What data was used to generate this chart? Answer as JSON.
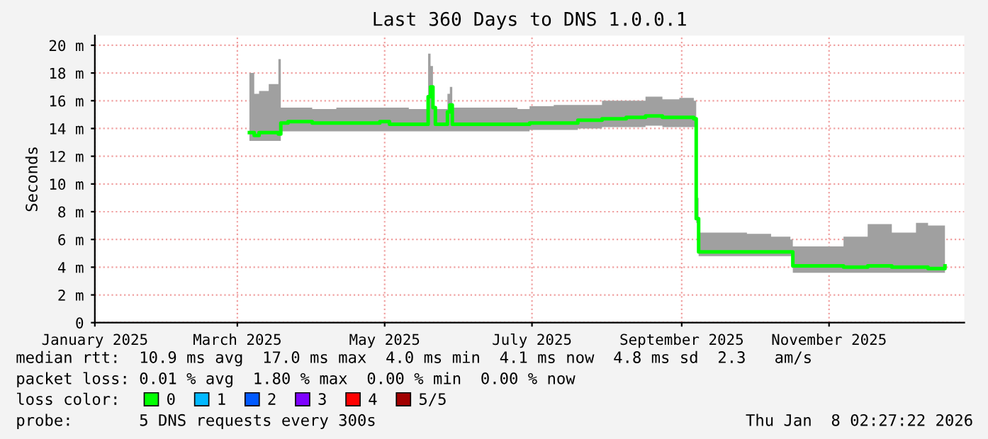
{
  "chart_data": {
    "type": "step",
    "title": "Last 360 Days to DNS 1.0.0.1",
    "ylabel": "Seconds",
    "x": [
      "2025-03-06",
      "2025-03-08",
      "2025-03-10",
      "2025-03-14",
      "2025-03-18",
      "2025-03-19",
      "2025-03-22",
      "2025-04-01",
      "2025-04-11",
      "2025-04-21",
      "2025-04-29",
      "2025-05-03",
      "2025-05-11",
      "2025-05-18",
      "2025-05-19",
      "2025-05-20",
      "2025-05-21",
      "2025-05-22",
      "2025-05-26",
      "2025-05-27",
      "2025-05-28",
      "2025-05-29",
      "2025-06-05",
      "2025-06-15",
      "2025-06-25",
      "2025-06-30",
      "2025-07-10",
      "2025-07-20",
      "2025-07-30",
      "2025-08-09",
      "2025-08-17",
      "2025-08-24",
      "2025-08-31",
      "2025-09-06",
      "2025-09-07",
      "2025-09-08",
      "2025-09-18",
      "2025-09-28",
      "2025-10-08",
      "2025-10-16",
      "2025-10-17",
      "2025-10-28",
      "2025-11-07",
      "2025-11-17",
      "2025-11-27",
      "2025-12-07",
      "2025-12-12",
      "2025-12-19"
    ],
    "series": [
      {
        "name": "0",
        "color": "#00ff00",
        "values": [
          13.7,
          13.5,
          13.7,
          13.7,
          13.6,
          14.4,
          14.5,
          14.4,
          14.4,
          14.4,
          14.5,
          14.3,
          14.3,
          14.3,
          16.3,
          17.0,
          15.5,
          14.3,
          14.3,
          15.2,
          15.7,
          14.3,
          14.3,
          14.3,
          14.3,
          14.4,
          14.4,
          14.6,
          14.7,
          14.8,
          14.9,
          14.8,
          14.8,
          14.7,
          7.5,
          5.1,
          5.1,
          5.1,
          5.1,
          5.1,
          4.1,
          4.1,
          4.0,
          4.1,
          4.0,
          4.0,
          3.9,
          4.1
        ],
        "lower": [
          13.1,
          13.1,
          13.1,
          13.1,
          13.1,
          13.8,
          13.8,
          13.8,
          13.8,
          13.8,
          13.8,
          13.8,
          13.8,
          13.8,
          13.8,
          13.8,
          13.8,
          13.8,
          13.8,
          13.8,
          13.8,
          13.8,
          13.8,
          13.8,
          13.8,
          13.9,
          13.9,
          14.0,
          14.1,
          14.1,
          14.2,
          14.1,
          14.1,
          14.1,
          7.2,
          4.8,
          4.8,
          4.8,
          4.8,
          4.8,
          3.6,
          3.6,
          3.6,
          3.6,
          3.6,
          3.6,
          3.6,
          3.6
        ],
        "upper": [
          18.0,
          16.5,
          16.7,
          17.2,
          19.0,
          15.5,
          15.5,
          15.4,
          15.5,
          15.5,
          15.5,
          15.5,
          15.4,
          15.4,
          19.4,
          18.5,
          15.5,
          15.4,
          15.4,
          16.5,
          17.0,
          15.5,
          15.5,
          15.5,
          15.4,
          15.6,
          15.7,
          15.7,
          16.0,
          16.0,
          16.3,
          16.1,
          16.2,
          16.0,
          9.0,
          6.5,
          6.5,
          6.4,
          6.2,
          6.0,
          5.5,
          5.5,
          6.2,
          7.1,
          6.5,
          7.2,
          7.0,
          6.0
        ]
      },
      {
        "name": "1",
        "color": "#00b8ff",
        "values": [
          null,
          null,
          null,
          null,
          null,
          null,
          null,
          null,
          null,
          null,
          null,
          null,
          null,
          null,
          null,
          null,
          null,
          null,
          null,
          null,
          null,
          null,
          null,
          null,
          null,
          null,
          null,
          null,
          null,
          null,
          null,
          null,
          null,
          null,
          null,
          null,
          null,
          null,
          null,
          null,
          null,
          null,
          null,
          null,
          null,
          null,
          null,
          null
        ]
      },
      {
        "name": "2",
        "color": "#0059ff",
        "values": [
          null,
          null,
          null,
          null,
          null,
          null,
          null,
          null,
          null,
          null,
          null,
          null,
          null,
          null,
          null,
          null,
          null,
          null,
          null,
          null,
          null,
          null,
          null,
          null,
          null,
          null,
          null,
          null,
          null,
          null,
          null,
          null,
          null,
          null,
          null,
          null,
          null,
          null,
          null,
          null,
          null,
          null,
          null,
          null,
          null,
          null,
          null,
          null
        ]
      },
      {
        "name": "3",
        "color": "#7e00ff",
        "values": [
          null,
          null,
          null,
          null,
          null,
          null,
          null,
          null,
          null,
          null,
          null,
          null,
          null,
          null,
          null,
          null,
          null,
          null,
          null,
          null,
          null,
          null,
          null,
          null,
          null,
          null,
          null,
          null,
          null,
          null,
          null,
          null,
          null,
          null,
          null,
          null,
          null,
          null,
          null,
          null,
          null,
          null,
          null,
          null,
          null,
          null,
          null,
          null
        ]
      },
      {
        "name": "4",
        "color": "#ff0000",
        "values": [
          null,
          null,
          null,
          null,
          null,
          null,
          null,
          null,
          null,
          null,
          null,
          null,
          null,
          null,
          null,
          null,
          null,
          null,
          null,
          null,
          null,
          null,
          null,
          null,
          null,
          null,
          null,
          null,
          null,
          null,
          null,
          null,
          null,
          null,
          null,
          null,
          null,
          null,
          null,
          null,
          null,
          null,
          null,
          null,
          null,
          null,
          null,
          null
        ]
      },
      {
        "name": "5/5",
        "color": "#a10000",
        "values": [
          null,
          null,
          null,
          null,
          null,
          null,
          null,
          null,
          null,
          null,
          null,
          null,
          null,
          null,
          null,
          null,
          null,
          null,
          null,
          null,
          null,
          null,
          null,
          null,
          null,
          null,
          null,
          null,
          null,
          null,
          null,
          null,
          null,
          null,
          null,
          null,
          null,
          null,
          null,
          null,
          null,
          null,
          null,
          null,
          null,
          null,
          null,
          null
        ]
      }
    ],
    "legend_title": "loss color:",
    "legend": "bottom",
    "xlim": [
      "2025-01-01",
      "2025-12-27"
    ],
    "xticks": [
      {
        "value": "2025-01-01",
        "label": "January 2025"
      },
      {
        "value": "2025-03-01",
        "label": "March 2025"
      },
      {
        "value": "2025-05-01",
        "label": "May 2025"
      },
      {
        "value": "2025-07-01",
        "label": "July 2025"
      },
      {
        "value": "2025-09-01",
        "label": "September 2025"
      },
      {
        "value": "2025-11-01",
        "label": "November 2025"
      }
    ],
    "ylim": [
      0,
      20.7
    ],
    "yticks": [
      0,
      {
        "value": 2,
        "label": "2 m"
      },
      {
        "value": 4,
        "label": "4 m"
      },
      {
        "value": 6,
        "label": "6 m"
      },
      {
        "value": 8,
        "label": "8 m"
      },
      {
        "value": 10,
        "label": "10 m"
      },
      {
        "value": 12,
        "label": "12 m"
      },
      {
        "value": 14,
        "label": "14 m"
      },
      {
        "value": 16,
        "label": "16 m"
      },
      {
        "value": 18,
        "label": "18 m"
      },
      {
        "value": 20,
        "label": "20 m"
      }
    ],
    "grid": true,
    "annotations": [
      "median rtt:  10.9 ms avg  17.0 ms max  4.0 ms min  4.1 ms now  4.8 ms sd  2.3   am/s",
      "packet loss: 0.01 % avg  1.80 % max  0.00 % min  0.00 % now",
      "probe:       5 DNS requests every 300s",
      "Thu Jan  8 02:27:22 2026"
    ]
  }
}
